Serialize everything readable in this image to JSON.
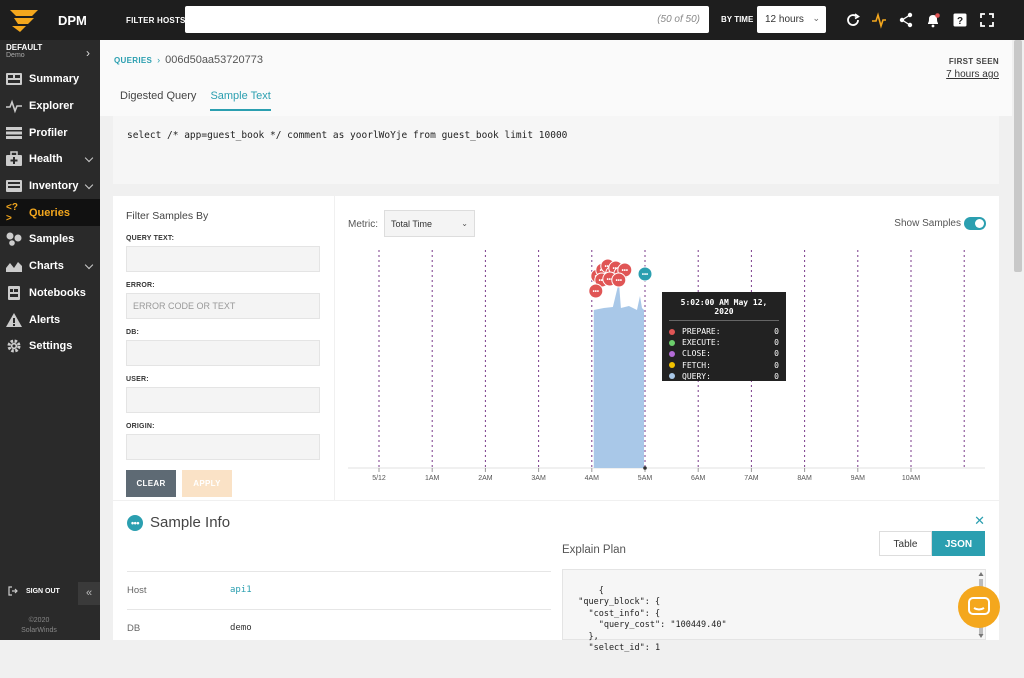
{
  "app": {
    "name": "DPM"
  },
  "topbar": {
    "filter_hosts_label": "FILTER HOSTS",
    "filter_hosts_value": "",
    "filter_hosts_count": "(50 of 50)",
    "by_time_label": "BY TIME",
    "by_time_value": "12 hours",
    "icons": [
      "refresh-icon",
      "activity-icon",
      "share-icon",
      "notification-bell-icon",
      "help-icon",
      "fullscreen-icon"
    ]
  },
  "sidebar": {
    "org_name": "DEFAULT",
    "org_sub": "Demo",
    "items": [
      {
        "label": "Summary",
        "icon": "summary-icon"
      },
      {
        "label": "Explorer",
        "icon": "explorer-icon"
      },
      {
        "label": "Profiler",
        "icon": "profiler-icon"
      },
      {
        "label": "Health",
        "icon": "health-icon"
      },
      {
        "label": "Inventory",
        "icon": "inventory-icon"
      },
      {
        "label": "Queries",
        "icon": "queries-icon",
        "active": true
      },
      {
        "label": "Samples",
        "icon": "samples-icon"
      },
      {
        "label": "Charts",
        "icon": "charts-icon"
      },
      {
        "label": "Notebooks",
        "icon": "notebooks-icon"
      },
      {
        "label": "Alerts",
        "icon": "alerts-icon"
      },
      {
        "label": "Settings",
        "icon": "settings-icon"
      }
    ],
    "sign_out": "SIGN OUT",
    "copyright_year": "©2020",
    "copyright_name": "SolarWinds"
  },
  "header": {
    "breadcrumb_link": "QUERIES",
    "breadcrumb_current": "006d50aa53720773",
    "first_seen_label": "FIRST SEEN",
    "first_seen_value": "7 hours ago",
    "tabs": [
      "Digested Query",
      "Sample Text"
    ],
    "active_tab": "Sample Text"
  },
  "sql_text": "select /* app=guest_book */ comment as yoorlWoYje from guest_book limit 10000",
  "filters": {
    "title": "Filter Samples By",
    "fields": [
      {
        "label": "QUERY TEXT:",
        "placeholder": ""
      },
      {
        "label": "ERROR:",
        "placeholder": "ERROR CODE OR TEXT"
      },
      {
        "label": "DB:",
        "placeholder": ""
      },
      {
        "label": "USER:",
        "placeholder": ""
      },
      {
        "label": "ORIGIN:",
        "placeholder": ""
      }
    ],
    "clear_label": "CLEAR",
    "apply_label": "APPLY"
  },
  "chart_controls": {
    "metric_label": "Metric:",
    "metric_value": "Total Time",
    "show_samples_label": "Show Samples",
    "show_samples_on": true
  },
  "chart_data": {
    "type": "area",
    "x_ticks": [
      "5/12",
      "1AM",
      "2AM",
      "3AM",
      "4AM",
      "5AM",
      "6AM",
      "7AM",
      "8AM",
      "9AM",
      "10AM"
    ],
    "highlight_range": [
      "4AM",
      "5AM"
    ],
    "grid": true,
    "colors": {
      "area": "#a9c8e8",
      "grid": "#7a3a8a",
      "sample": "#e05555",
      "selected_sample": "#2b9fb0"
    },
    "tooltip": {
      "title": "5:02:00 AM May 12, 2020",
      "rows": [
        {
          "name": "PREPARE:",
          "value": "0",
          "color": "#e05555"
        },
        {
          "name": "EXECUTE:",
          "value": "0",
          "color": "#6ccf6c"
        },
        {
          "name": "CLOSE:",
          "value": "0",
          "color": "#b36bd6"
        },
        {
          "name": "FETCH:",
          "value": "0",
          "color": "#f2c200"
        },
        {
          "name": "QUERY:",
          "value": "0",
          "color": "#a9c8e8"
        }
      ]
    }
  },
  "sample_info": {
    "title": "Sample Info",
    "rows": [
      {
        "key": "Host",
        "value": "api1",
        "link": true
      },
      {
        "key": "DB",
        "value": "demo",
        "link": false
      }
    ],
    "explain_plan_label": "Explain Plan",
    "view_options": [
      "Table",
      "JSON"
    ],
    "active_view": "JSON",
    "json_text": "{\n  \"query_block\": {\n    \"cost_info\": {\n      \"query_cost\": \"100449.40\"\n    },\n    \"select_id\": 1"
  }
}
